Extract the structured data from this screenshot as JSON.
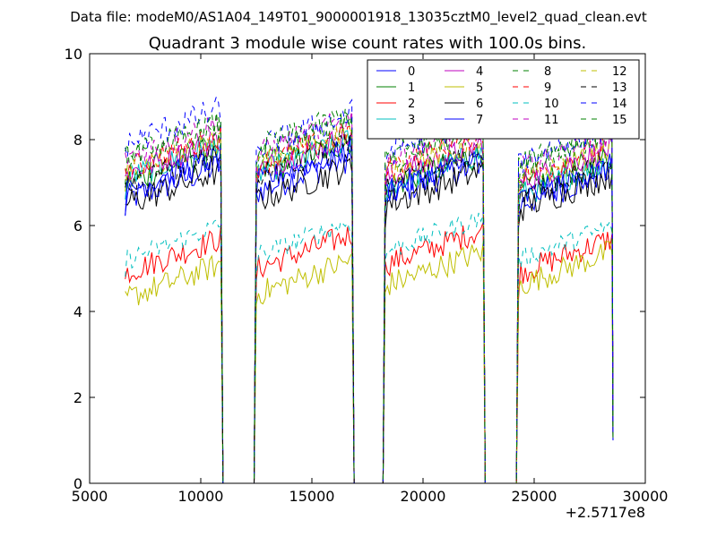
{
  "header": {
    "suptitle": "Data file: modeM0/AS1A04_149T01_9000001918_13035cztM0_level2_quad_clean.evt"
  },
  "chart_data": {
    "type": "line",
    "title": "Quadrant 3 module wise count rates with 100.0s bins.",
    "xlabel": "",
    "ylabel": "",
    "offset_text": "+2.5717e8",
    "xlim": [
      5000,
      30000
    ],
    "ylim": [
      0,
      10
    ],
    "x_ticks": [
      5000,
      10000,
      15000,
      20000,
      25000,
      30000
    ],
    "x_tick_labels": [
      "5000",
      "10000",
      "15000",
      "20000",
      "25000",
      "30000"
    ],
    "y_ticks": [
      0,
      2,
      4,
      6,
      8,
      10
    ],
    "y_tick_labels": [
      "0",
      "2",
      "4",
      "6",
      "8",
      "10"
    ],
    "grid": false,
    "legend_placement": "top-right",
    "legend_columns": 4,
    "segments": [
      [
        6600,
        10900
      ],
      [
        12500,
        16800
      ],
      [
        18300,
        22700
      ],
      [
        24300,
        28500
      ]
    ],
    "bin_width": 100,
    "series": [
      {
        "name": "0",
        "color": "#0000ff",
        "dash": "solid",
        "base": [
          7.0,
          7.2,
          7.1,
          6.9
        ],
        "noise": 0.35
      },
      {
        "name": "1",
        "color": "#008000",
        "dash": "solid",
        "base": [
          7.4,
          7.6,
          7.3,
          7.2
        ],
        "noise": 0.35
      },
      {
        "name": "2",
        "color": "#ff0000",
        "dash": "solid",
        "base": [
          5.3,
          5.4,
          5.5,
          5.3
        ],
        "noise": 0.3
      },
      {
        "name": "3",
        "color": "#00bfbf",
        "dash": "solid",
        "base": [
          7.5,
          7.6,
          7.3,
          7.1
        ],
        "noise": 0.3
      },
      {
        "name": "4",
        "color": "#bf00bf",
        "dash": "solid",
        "base": [
          7.6,
          7.7,
          7.5,
          7.4
        ],
        "noise": 0.3
      },
      {
        "name": "5",
        "color": "#bfbf00",
        "dash": "solid",
        "base": [
          4.7,
          4.8,
          5.0,
          5.0
        ],
        "noise": 0.3
      },
      {
        "name": "6",
        "color": "#000000",
        "dash": "solid",
        "base": [
          6.9,
          7.0,
          6.9,
          6.8
        ],
        "noise": 0.35
      },
      {
        "name": "7",
        "color": "#0000ff",
        "dash": "solid",
        "base": [
          7.2,
          7.4,
          7.2,
          7.0
        ],
        "noise": 0.3
      },
      {
        "name": "8",
        "color": "#008000",
        "dash": "dashed",
        "base": [
          7.9,
          8.0,
          7.9,
          7.8
        ],
        "noise": 0.3
      },
      {
        "name": "9",
        "color": "#ff0000",
        "dash": "dashed",
        "base": [
          7.7,
          7.8,
          7.7,
          7.5
        ],
        "noise": 0.3
      },
      {
        "name": "10",
        "color": "#00bfbf",
        "dash": "dashed",
        "base": [
          5.6,
          5.7,
          5.8,
          5.6
        ],
        "noise": 0.25
      },
      {
        "name": "11",
        "color": "#bf00bf",
        "dash": "dashed",
        "base": [
          8.0,
          8.1,
          7.9,
          7.7
        ],
        "noise": 0.3
      },
      {
        "name": "12",
        "color": "#bfbf00",
        "dash": "dashed",
        "base": [
          7.6,
          7.8,
          7.6,
          7.4
        ],
        "noise": 0.3
      },
      {
        "name": "13",
        "color": "#000000",
        "dash": "dashed",
        "base": [
          7.3,
          7.5,
          7.3,
          7.1
        ],
        "noise": 0.3
      },
      {
        "name": "14",
        "color": "#0000ff",
        "dash": "dashed",
        "base": [
          8.3,
          8.2,
          8.1,
          7.9
        ],
        "noise": 0.35
      },
      {
        "name": "15",
        "color": "#008000",
        "dash": "dashed",
        "base": [
          8.0,
          8.2,
          8.0,
          7.8
        ],
        "noise": 0.3
      }
    ]
  }
}
